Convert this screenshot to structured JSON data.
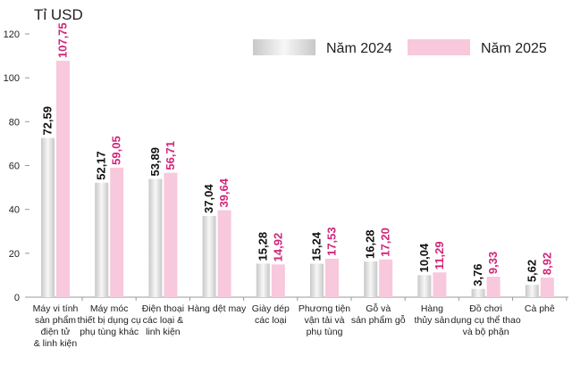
{
  "chart_data": {
    "type": "bar",
    "ylabel": "Tỉ USD",
    "ylim": [
      0,
      120
    ],
    "yticks": [
      0,
      20,
      40,
      60,
      80,
      100,
      120
    ],
    "grid": false,
    "legend_placement": "top-right",
    "categories": [
      [
        "Máy vi tính",
        "sản phẩm",
        "điện tử",
        "& linh kiện"
      ],
      [
        "Máy móc",
        "thiết bị dụng cụ",
        "phụ tùng khác"
      ],
      [
        "Điện thoại",
        "các loại &",
        "linh kiện"
      ],
      [
        "Hàng dệt may"
      ],
      [
        "Giày dép",
        "các loại"
      ],
      [
        "Phương tiện",
        "vận tải và",
        "phụ tùng"
      ],
      [
        "Gỗ và",
        "sản phẩm gỗ"
      ],
      [
        "Hàng",
        "thủy sản"
      ],
      [
        "Đồ chơi",
        "dụng cụ thể thao",
        "và bộ phận"
      ],
      [
        "Cà phê"
      ]
    ],
    "series": [
      {
        "name": "Năm 2024",
        "color": "#d9d9d9",
        "label_color": "#111111",
        "values": [
          72.59,
          52.17,
          53.89,
          37.04,
          15.28,
          15.24,
          16.28,
          10.04,
          3.76,
          5.62
        ],
        "labels": [
          "72,59",
          "52,17",
          "53,89",
          "37,04",
          "15,28",
          "15,24",
          "16,28",
          "10,04",
          "3,76",
          "5,62"
        ]
      },
      {
        "name": "Năm 2025",
        "color": "#f8c8dc",
        "label_color": "#d0267a",
        "values": [
          107.75,
          59.05,
          56.71,
          39.64,
          14.92,
          17.53,
          17.2,
          11.29,
          9.33,
          8.92
        ],
        "labels": [
          "107,75",
          "59,05",
          "56,71",
          "39,64",
          "14,92",
          "17,53",
          "17,20",
          "11,29",
          "9,33",
          "8,92"
        ]
      }
    ]
  }
}
